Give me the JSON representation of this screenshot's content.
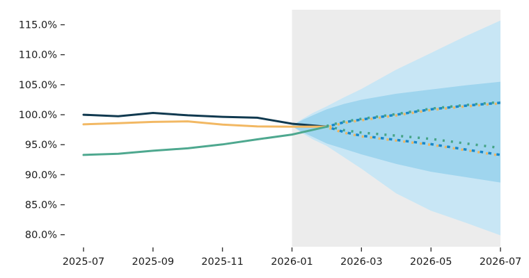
{
  "figure": {
    "background": "#ffffff"
  },
  "chart_data": {
    "type": "line",
    "title": "",
    "x_axis": {
      "tick_labels": [
        "2025-07",
        "2025-09",
        "2025-11",
        "2026-01",
        "2026-03",
        "2026-05",
        "2026-07"
      ],
      "tick_months": [
        0,
        2,
        4,
        6,
        8,
        10,
        12
      ],
      "xlim_months": [
        -0.5,
        12.0
      ]
    },
    "y_axis": {
      "tick_labels": [
        "80.0%",
        "85.0%",
        "90.0%",
        "95.0%",
        "100.0%",
        "105.0%",
        "110.0%",
        "115.0%"
      ],
      "tick_values": [
        80,
        85,
        90,
        95,
        100,
        105,
        110,
        115
      ],
      "ylim": [
        78.0,
        117.5
      ],
      "unit": "%"
    },
    "grid": false,
    "legend": false,
    "history": {
      "months": [
        0,
        1,
        2,
        3,
        4,
        5,
        6,
        7
      ],
      "series": [
        {
          "name": "navy",
          "color": "#10394f",
          "values": [
            100.0,
            99.75,
            100.3,
            99.9,
            99.65,
            99.5,
            98.5,
            98.0
          ]
        },
        {
          "name": "amber",
          "color": "#f2b863",
          "values": [
            98.4,
            98.6,
            98.8,
            98.9,
            98.35,
            98.05,
            98.0,
            98.0
          ]
        },
        {
          "name": "teal",
          "color": "#4ea88f",
          "values": [
            93.3,
            93.5,
            94.0,
            94.4,
            95.05,
            95.9,
            96.7,
            98.0
          ]
        }
      ]
    },
    "forecast": {
      "region_start_month": 6,
      "region_color": "#ececec",
      "band_months": [
        6,
        6.3,
        6.6,
        7,
        7.5,
        8,
        9,
        10,
        11,
        12
      ],
      "bands": [
        {
          "name": "outer",
          "color": "#c8e6f5",
          "hi": [
            98.2,
            99.3,
            100.3,
            101.4,
            102.9,
            104.3,
            107.5,
            110.3,
            113.1,
            115.7
          ],
          "lo": [
            98.1,
            96.9,
            95.9,
            94.8,
            92.9,
            91.0,
            86.9,
            84.0,
            82.0,
            79.9
          ]
        },
        {
          "name": "inner",
          "color": "#9fd5ee",
          "hi": [
            98.2,
            99.1,
            99.9,
            100.9,
            101.8,
            102.5,
            103.5,
            104.2,
            104.9,
            105.5
          ],
          "lo": [
            98.1,
            97.1,
            96.3,
            95.2,
            94.3,
            93.4,
            91.8,
            90.5,
            89.6,
            88.7
          ]
        }
      ],
      "line_months": [
        7,
        7.5,
        8,
        9,
        10,
        11,
        12
      ],
      "lines": [
        {
          "name": "upper-quantile",
          "layers": [
            "teal",
            "amber",
            "blue"
          ],
          "values": [
            98.0,
            98.75,
            99.2,
            100.0,
            100.9,
            101.5,
            102.0
          ]
        },
        {
          "name": "lower-quantile-teal",
          "layers": [
            "teal"
          ],
          "values": [
            98.0,
            97.3,
            96.9,
            96.4,
            95.85,
            95.1,
            94.35
          ]
        },
        {
          "name": "lower-quantile-blue-amber",
          "layers": [
            "amber",
            "blue"
          ],
          "values": [
            98.0,
            97.1,
            96.5,
            95.8,
            95.1,
            94.2,
            93.3
          ]
        }
      ],
      "dash_colors": {
        "blue": "#1787c8",
        "teal": "#46a487",
        "amber": "#edb765"
      }
    },
    "text_color": "#1a1a1a",
    "tick_color": "#333333"
  }
}
